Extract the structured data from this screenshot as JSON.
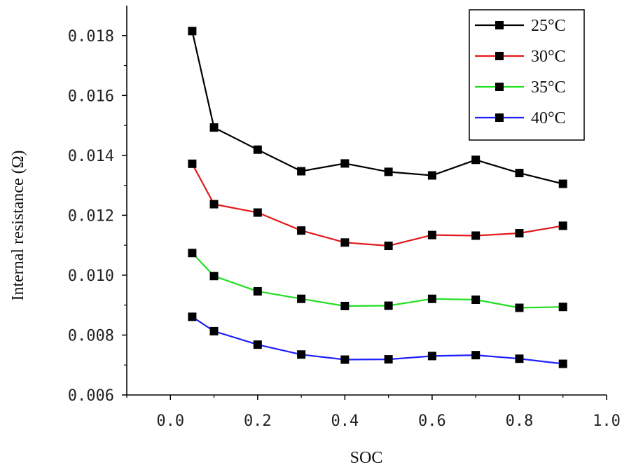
{
  "chart_data": {
    "type": "line",
    "title": "",
    "xlabel": "SOC",
    "ylabel": "Internal resistance (Ω)",
    "xlim": [
      -0.1,
      1.0
    ],
    "ylim": [
      0.006,
      0.019
    ],
    "xticks": [
      0.0,
      0.2,
      0.4,
      0.6,
      0.8,
      1.0
    ],
    "xtick_labels": [
      "0.0",
      "0.2",
      "0.4",
      "0.6",
      "0.8",
      "1.0"
    ],
    "yticks": [
      0.006,
      0.008,
      0.01,
      0.012,
      0.014,
      0.016,
      0.018
    ],
    "ytick_labels": [
      "0.006",
      "0.008",
      "0.010",
      "0.012",
      "0.014",
      "0.016",
      "0.018"
    ],
    "grid": false,
    "legend_position": "top-right",
    "x": [
      0.05,
      0.1,
      0.2,
      0.3,
      0.4,
      0.5,
      0.6,
      0.7,
      0.8,
      0.9
    ],
    "series": [
      {
        "name": "25°C",
        "color": "#000000",
        "values": [
          0.01815,
          0.01493,
          0.01419,
          0.01347,
          0.01373,
          0.01345,
          0.01333,
          0.01385,
          0.01341,
          0.01305
        ]
      },
      {
        "name": "30°C",
        "color": "#e31a1c",
        "values": [
          0.01372,
          0.01237,
          0.01209,
          0.01149,
          0.01109,
          0.01098,
          0.01134,
          0.01132,
          0.0114,
          0.01165
        ]
      },
      {
        "name": "35°C",
        "color": "#22e022",
        "values": [
          0.01074,
          0.00997,
          0.00946,
          0.00921,
          0.00897,
          0.00898,
          0.00921,
          0.00918,
          0.00891,
          0.00894
        ]
      },
      {
        "name": "40°C",
        "color": "#1f1fff",
        "values": [
          0.00861,
          0.00813,
          0.00768,
          0.00735,
          0.00718,
          0.00719,
          0.0073,
          0.00733,
          0.00721,
          0.00704
        ]
      }
    ]
  }
}
